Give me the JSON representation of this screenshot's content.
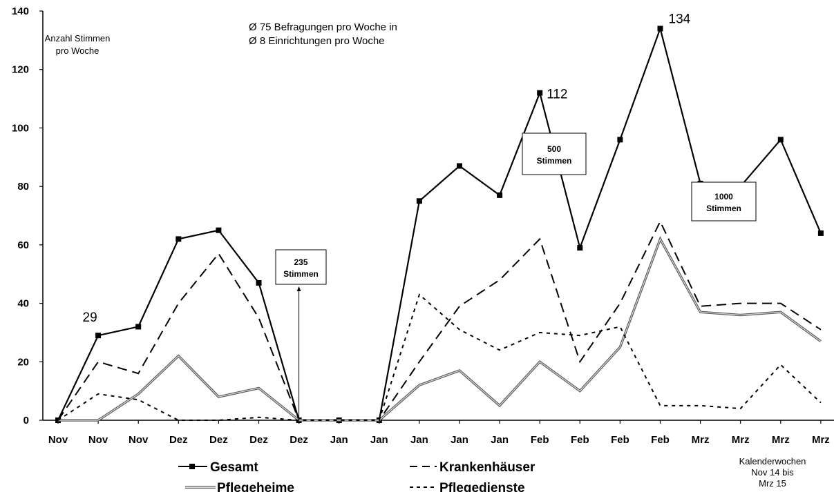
{
  "chart_data": {
    "type": "line",
    "categories": [
      "Nov",
      "Nov",
      "Nov",
      "Dez",
      "Dez",
      "Dez",
      "Dez",
      "Jan",
      "Jan",
      "Jan",
      "Jan",
      "Jan",
      "Feb",
      "Feb",
      "Feb",
      "Feb",
      "Mrz",
      "Mrz",
      "Mrz",
      "Mrz"
    ],
    "ylim": [
      0,
      140
    ],
    "yticks": [
      0,
      20,
      40,
      60,
      80,
      100,
      120,
      140
    ],
    "ylabel_lines": [
      "Anzahl Stimmen",
      "pro Woche"
    ],
    "xlabel_lines": [
      "Kalenderwochen",
      "Nov 14 bis",
      "Mrz 15"
    ],
    "notes": [
      "Ø 75 Befragungen pro Woche in",
      "Ø 8 Einrichtungen pro Woche"
    ],
    "series": [
      {
        "name": "Gesamt",
        "style": "solid-marker",
        "color": "#000000",
        "values": [
          0,
          29,
          32,
          62,
          65,
          47,
          0,
          0,
          0,
          75,
          87,
          77,
          112,
          59,
          96,
          134,
          81,
          80,
          96,
          64
        ]
      },
      {
        "name": "Krankenhäuser",
        "style": "long-dash",
        "color": "#000000",
        "values": [
          0,
          20,
          16,
          40,
          57,
          35,
          0,
          0,
          0,
          20,
          39,
          48,
          62,
          20,
          40,
          68,
          39,
          40,
          40,
          31
        ]
      },
      {
        "name": "Pflegeheime",
        "style": "double-gray",
        "color": "#7f7f7f",
        "values": [
          0,
          0,
          9,
          22,
          8,
          11,
          0,
          0,
          0,
          12,
          17,
          5,
          20,
          10,
          25,
          62,
          37,
          36,
          37,
          27
        ]
      },
      {
        "name": "Pflegedienste",
        "style": "short-dash",
        "color": "#000000",
        "values": [
          0,
          9,
          7,
          0,
          0,
          1,
          0,
          0,
          0,
          43,
          31,
          24,
          30,
          29,
          32,
          5,
          5,
          4,
          19,
          6
        ]
      }
    ],
    "annotations": [
      {
        "text": "29",
        "at_index": 1,
        "value": 29
      },
      {
        "text": "112",
        "at_index": 12,
        "value": 112
      },
      {
        "text": "134",
        "at_index": 15,
        "value": 134
      }
    ],
    "milestones": [
      {
        "lines": [
          "235",
          "Stimmen"
        ],
        "at_index": 6
      },
      {
        "lines": [
          "500",
          "Stimmen"
        ],
        "at_index": 12.5
      },
      {
        "lines": [
          "1000",
          "Stimmen"
        ],
        "at_index": 16.5
      }
    ],
    "legend_position": "bottom"
  }
}
